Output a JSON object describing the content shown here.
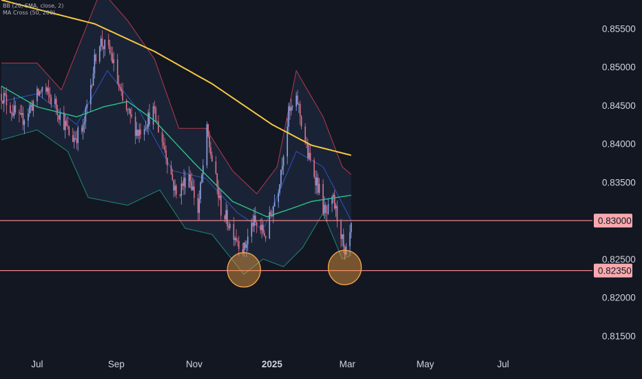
{
  "indicators": {
    "bb": "BB (20, SMA, close, 2)",
    "ma": "MA Cross (50, 200)"
  },
  "colors": {
    "background": "#131722",
    "up_candle": "#8fa3e6",
    "down_candle": "#e0728f",
    "bb_upper": "#b23a4f",
    "bb_basis": "#2a53c4",
    "bb_lower": "#1d8a73",
    "bb_fill": "#1c2638",
    "ma50": "#2bc48a",
    "ma200": "#f5c842",
    "support_line": "#f0848a",
    "price_label_bg": "#f7a9ae",
    "price_label_text": "#131722",
    "axis_text": "#d1d4dc",
    "highlight_fill": "#f0a040",
    "highlight_stroke": "#f2a24a"
  },
  "chart_data": {
    "type": "candlestick",
    "y_ticks": [
      "0.85500",
      "0.85000",
      "0.84500",
      "0.84000",
      "0.83500",
      "0.82500",
      "0.82000",
      "0.81500"
    ],
    "ylim": [
      0.8128,
      0.8587
    ],
    "x_ticks": [
      {
        "label": "Jul",
        "date": "2024-07-01",
        "bold": false
      },
      {
        "label": "Sep",
        "date": "2024-09-01",
        "bold": false
      },
      {
        "label": "Nov",
        "date": "2024-11-01",
        "bold": false
      },
      {
        "label": "2025",
        "date": "2025-01-01",
        "bold": true
      },
      {
        "label": "Mar",
        "date": "2025-03-01",
        "bold": false
      },
      {
        "label": "May",
        "date": "2025-05-01",
        "bold": false
      },
      {
        "label": "Jul",
        "date": "2025-07-01",
        "bold": false
      }
    ],
    "xlim": [
      "2024-06-03",
      "2025-09-10"
    ],
    "horizontal_levels": [
      {
        "value": 0.83,
        "label": "0.83000"
      },
      {
        "value": 0.8235,
        "label": "0.82350"
      }
    ],
    "highlights": [
      {
        "date": "2024-12-10",
        "value": 0.8236
      },
      {
        "date": "2025-02-27",
        "value": 0.8239
      }
    ],
    "price_anchors": [
      {
        "date": "2024-06-03",
        "close": 0.8465
      },
      {
        "date": "2024-06-18",
        "close": 0.8428
      },
      {
        "date": "2024-07-05",
        "close": 0.8472
      },
      {
        "date": "2024-07-15",
        "close": 0.8452
      },
      {
        "date": "2024-07-28",
        "close": 0.8406
      },
      {
        "date": "2024-08-06",
        "close": 0.8418
      },
      {
        "date": "2024-08-18",
        "close": 0.8536
      },
      {
        "date": "2024-08-28",
        "close": 0.8516
      },
      {
        "date": "2024-09-06",
        "close": 0.8452
      },
      {
        "date": "2024-09-18",
        "close": 0.8415
      },
      {
        "date": "2024-09-30",
        "close": 0.8442
      },
      {
        "date": "2024-10-10",
        "close": 0.8388
      },
      {
        "date": "2024-10-18",
        "close": 0.8332
      },
      {
        "date": "2024-10-28",
        "close": 0.8362
      },
      {
        "date": "2024-11-04",
        "close": 0.8312
      },
      {
        "date": "2024-11-11",
        "close": 0.8415
      },
      {
        "date": "2024-11-22",
        "close": 0.8315
      },
      {
        "date": "2024-12-03",
        "close": 0.8282
      },
      {
        "date": "2024-12-10",
        "close": 0.8262
      },
      {
        "date": "2024-12-17",
        "close": 0.8298
      },
      {
        "date": "2024-12-27",
        "close": 0.8282
      },
      {
        "date": "2025-01-06",
        "close": 0.8345
      },
      {
        "date": "2025-01-14",
        "close": 0.8438
      },
      {
        "date": "2025-01-21",
        "close": 0.8455
      },
      {
        "date": "2025-01-29",
        "close": 0.8385
      },
      {
        "date": "2025-02-05",
        "close": 0.8352
      },
      {
        "date": "2025-02-12",
        "close": 0.8305
      },
      {
        "date": "2025-02-18",
        "close": 0.8325
      },
      {
        "date": "2025-02-24",
        "close": 0.8285
      },
      {
        "date": "2025-02-27",
        "close": 0.8248
      },
      {
        "date": "2025-03-04",
        "close": 0.8288
      }
    ],
    "ma50_points": [
      {
        "date": "2024-06-03",
        "value": 0.8475
      },
      {
        "date": "2024-07-01",
        "value": 0.8448
      },
      {
        "date": "2024-08-01",
        "value": 0.8435
      },
      {
        "date": "2024-08-22",
        "value": 0.8448
      },
      {
        "date": "2024-09-10",
        "value": 0.8455
      },
      {
        "date": "2024-10-01",
        "value": 0.843
      },
      {
        "date": "2024-11-01",
        "value": 0.8375
      },
      {
        "date": "2024-12-01",
        "value": 0.8325
      },
      {
        "date": "2024-12-28",
        "value": 0.8305
      },
      {
        "date": "2025-01-15",
        "value": 0.8315
      },
      {
        "date": "2025-02-01",
        "value": 0.8325
      },
      {
        "date": "2025-03-04",
        "value": 0.8333
      }
    ],
    "ma200_points": [
      {
        "date": "2024-06-03",
        "value": 0.8587
      },
      {
        "date": "2024-07-01",
        "value": 0.8575
      },
      {
        "date": "2024-08-15",
        "value": 0.8556
      },
      {
        "date": "2024-10-01",
        "value": 0.852
      },
      {
        "date": "2024-11-15",
        "value": 0.8478
      },
      {
        "date": "2025-01-01",
        "value": 0.8425
      },
      {
        "date": "2025-02-01",
        "value": 0.8398
      },
      {
        "date": "2025-03-04",
        "value": 0.8385
      }
    ],
    "bb_upper_points": [
      {
        "date": "2024-06-03",
        "value": 0.8505
      },
      {
        "date": "2024-07-01",
        "value": 0.8505
      },
      {
        "date": "2024-07-20",
        "value": 0.847
      },
      {
        "date": "2024-08-20",
        "value": 0.86
      },
      {
        "date": "2024-09-10",
        "value": 0.856
      },
      {
        "date": "2024-10-01",
        "value": 0.851
      },
      {
        "date": "2024-10-20",
        "value": 0.842
      },
      {
        "date": "2024-11-10",
        "value": 0.842
      },
      {
        "date": "2024-12-01",
        "value": 0.8365
      },
      {
        "date": "2024-12-20",
        "value": 0.8335
      },
      {
        "date": "2025-01-05",
        "value": 0.837
      },
      {
        "date": "2025-01-20",
        "value": 0.8495
      },
      {
        "date": "2025-02-10",
        "value": 0.8435
      },
      {
        "date": "2025-02-25",
        "value": 0.837
      },
      {
        "date": "2025-03-04",
        "value": 0.836
      }
    ],
    "bb_basis_points": [
      {
        "date": "2024-06-03",
        "value": 0.8455
      },
      {
        "date": "2024-07-01",
        "value": 0.8465
      },
      {
        "date": "2024-08-01",
        "value": 0.8425
      },
      {
        "date": "2024-08-25",
        "value": 0.8495
      },
      {
        "date": "2024-09-20",
        "value": 0.844
      },
      {
        "date": "2024-10-15",
        "value": 0.8365
      },
      {
        "date": "2024-11-10",
        "value": 0.8355
      },
      {
        "date": "2024-12-05",
        "value": 0.831
      },
      {
        "date": "2024-12-25",
        "value": 0.8288
      },
      {
        "date": "2025-01-20",
        "value": 0.839
      },
      {
        "date": "2025-02-10",
        "value": 0.837
      },
      {
        "date": "2025-03-04",
        "value": 0.83
      }
    ],
    "bb_lower_points": [
      {
        "date": "2024-06-03",
        "value": 0.8405
      },
      {
        "date": "2024-07-01",
        "value": 0.8418
      },
      {
        "date": "2024-07-25",
        "value": 0.839
      },
      {
        "date": "2024-08-10",
        "value": 0.833
      },
      {
        "date": "2024-09-10",
        "value": 0.832
      },
      {
        "date": "2024-10-05",
        "value": 0.834
      },
      {
        "date": "2024-10-25",
        "value": 0.829
      },
      {
        "date": "2024-11-15",
        "value": 0.8282
      },
      {
        "date": "2024-12-10",
        "value": 0.823
      },
      {
        "date": "2024-12-25",
        "value": 0.825
      },
      {
        "date": "2025-01-10",
        "value": 0.824
      },
      {
        "date": "2025-01-25",
        "value": 0.8265
      },
      {
        "date": "2025-02-10",
        "value": 0.831
      },
      {
        "date": "2025-02-25",
        "value": 0.825
      },
      {
        "date": "2025-03-04",
        "value": 0.8255
      }
    ]
  }
}
